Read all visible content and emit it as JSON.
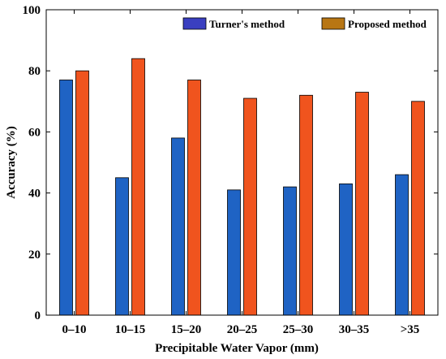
{
  "chart_data": {
    "type": "bar",
    "title": "",
    "xlabel": "Precipitable Water Vapor (mm)",
    "ylabel": "Accuracy (%)",
    "ylim": [
      0,
      100
    ],
    "yticks": [
      "0",
      "20",
      "40",
      "60",
      "80",
      "100"
    ],
    "categories": [
      "0–10",
      "10–15",
      "15–20",
      "20–25",
      "25–30",
      "30–35",
      ">35"
    ],
    "series": [
      {
        "name": "Turner's method",
        "values": [
          77,
          45,
          58,
          41,
          42,
          43,
          46
        ],
        "color": "#1f63c4",
        "legend_color": "#3a3fc0"
      },
      {
        "name": "Proposed method",
        "values": [
          80,
          84,
          77,
          71,
          72,
          73,
          70
        ],
        "color": "#f0541e",
        "legend_color": "#b87614"
      }
    ],
    "grid": false,
    "legend_position": "top-right"
  }
}
